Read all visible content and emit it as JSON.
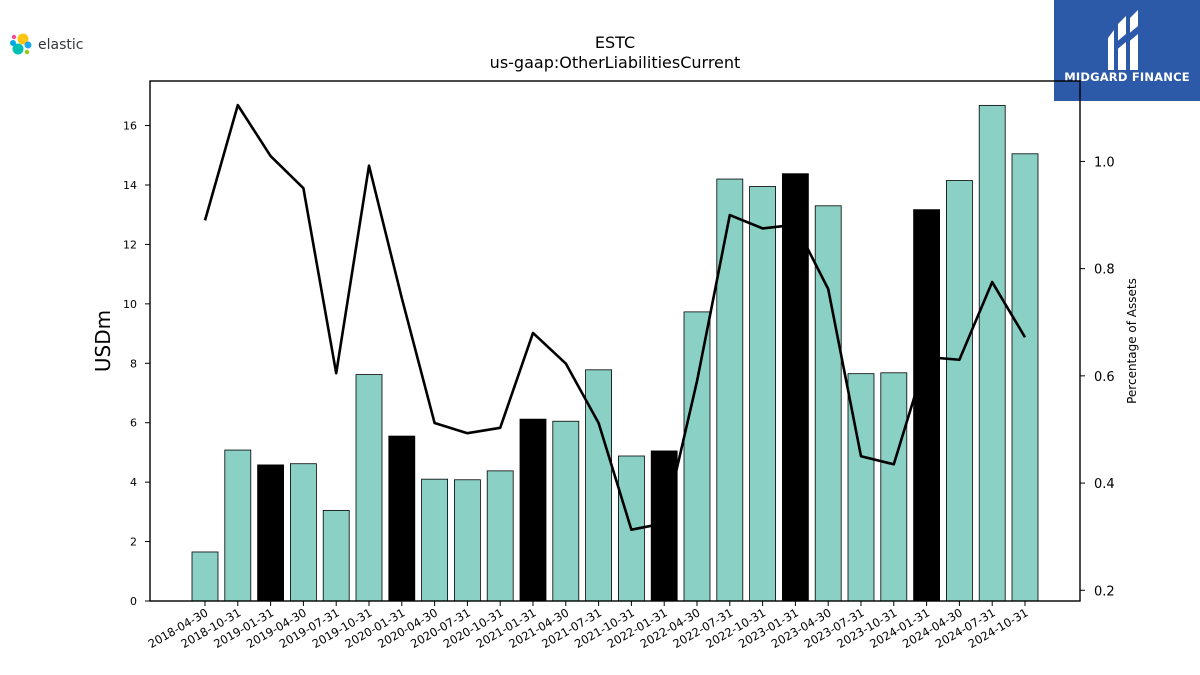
{
  "brand": {
    "name": "elastic",
    "partner": "MIDGARD FINANCE"
  },
  "chart_data": {
    "type": "bar",
    "title": "ESTC",
    "subtitle": "us-gaap:OtherLiabilitiesCurrent",
    "ylabel": "USDm",
    "y2label": "Percentage of Assets",
    "ylim": [
      0,
      17.5
    ],
    "y2lim": [
      0.18,
      1.15
    ],
    "yticks": [
      0,
      2,
      4,
      6,
      8,
      10,
      12,
      14,
      16
    ],
    "y2ticks": [
      0.2,
      0.4,
      0.6,
      0.8,
      1.0
    ],
    "colors": {
      "bar": "#8ad0c4",
      "bar_highlight": "#000000",
      "line": "#000000"
    },
    "categories": [
      "2018-04-30",
      "2018-10-31",
      "2019-01-31",
      "2019-04-30",
      "2019-07-31",
      "2019-10-31",
      "2020-01-31",
      "2020-04-30",
      "2020-07-31",
      "2020-10-31",
      "2021-01-31",
      "2021-04-30",
      "2021-07-31",
      "2021-10-31",
      "2022-01-31",
      "2022-04-30",
      "2022-07-31",
      "2022-10-31",
      "2023-01-31",
      "2023-04-30",
      "2023-07-31",
      "2023-10-31",
      "2024-01-31",
      "2024-04-30",
      "2024-07-31",
      "2024-10-31"
    ],
    "series": [
      {
        "type": "bar",
        "values": [
          1.65,
          5.08,
          4.58,
          4.62,
          3.05,
          7.62,
          5.55,
          4.1,
          4.08,
          4.38,
          6.12,
          6.05,
          7.78,
          4.88,
          5.05,
          9.73,
          14.2,
          13.95,
          14.38,
          13.3,
          7.65,
          7.68,
          13.17,
          14.15,
          16.68,
          15.05
        ],
        "highlight": [
          false,
          false,
          true,
          false,
          false,
          false,
          true,
          false,
          false,
          false,
          true,
          false,
          false,
          false,
          true,
          false,
          false,
          false,
          true,
          false,
          false,
          false,
          true,
          false,
          false,
          false
        ]
      },
      {
        "type": "line",
        "axis": "right",
        "values": [
          0.89,
          1.105,
          1.01,
          0.95,
          0.605,
          0.992,
          0.745,
          0.512,
          0.493,
          0.503,
          0.68,
          0.623,
          0.512,
          0.313,
          0.325,
          0.59,
          0.9,
          0.875,
          0.882,
          0.762,
          0.45,
          0.435,
          0.635,
          0.63,
          0.775,
          0.672
        ]
      }
    ]
  }
}
